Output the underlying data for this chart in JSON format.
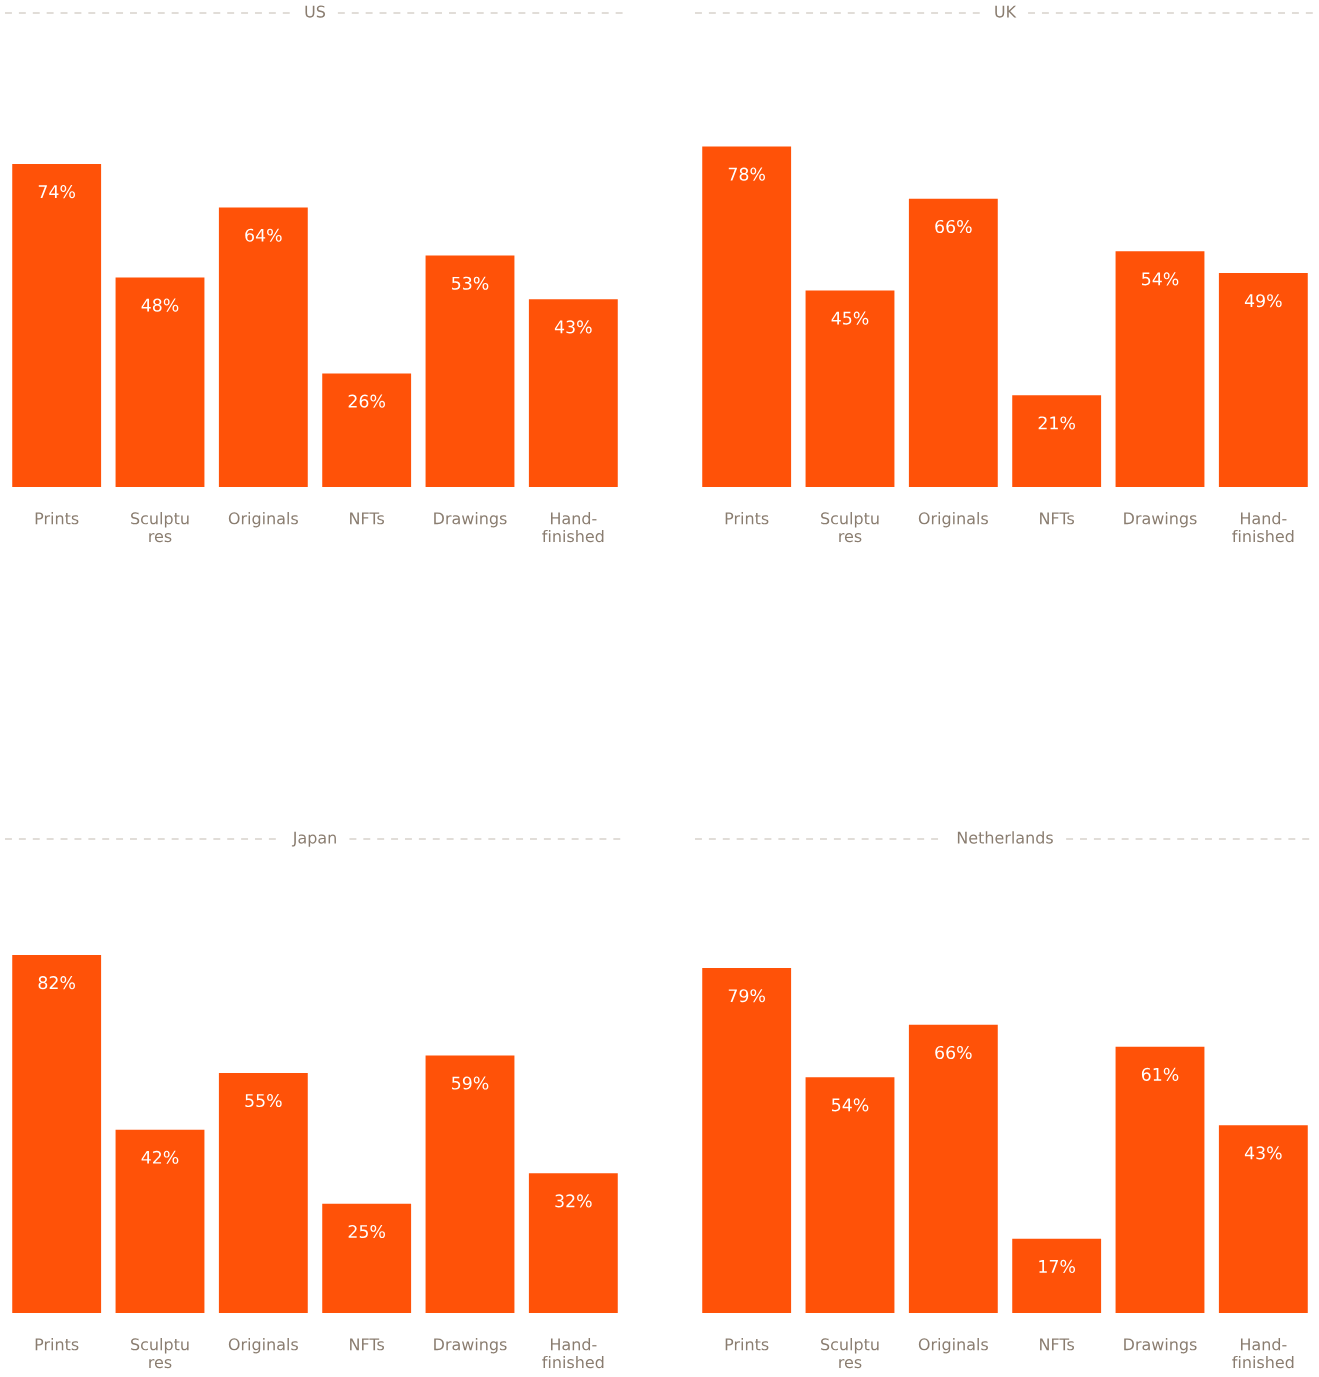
{
  "chart_data": [
    {
      "type": "bar",
      "title": "US",
      "categories": [
        "Prints",
        "Sculptu\nres",
        "Originals",
        "NFTs",
        "Drawings",
        "Hand-\nfinished"
      ],
      "values": [
        74,
        48,
        64,
        26,
        53,
        43
      ],
      "value_labels": [
        "74%",
        "48%",
        "64%",
        "26%",
        "53%",
        "43%"
      ],
      "color": "#ff5208",
      "tick_labels": "x"
    },
    {
      "type": "bar",
      "title": "UK",
      "categories": [
        "Prints",
        "Sculptu\nres",
        "Originals",
        "NFTs",
        "Drawings",
        "Hand-\nfinished"
      ],
      "values": [
        78,
        45,
        66,
        21,
        54,
        49
      ],
      "value_labels": [
        "78%",
        "45%",
        "66%",
        "21%",
        "54%",
        "49%"
      ],
      "color": "#ff5208",
      "tick_labels": "x"
    },
    {
      "type": "bar",
      "title": "Japan",
      "categories": [
        "Prints",
        "Sculptu\nres",
        "Originals",
        "NFTs",
        "Drawings",
        "Hand-\nfinished"
      ],
      "values": [
        82,
        42,
        55,
        25,
        59,
        32
      ],
      "value_labels": [
        "82%",
        "42%",
        "55%",
        "25%",
        "59%",
        "32%"
      ],
      "color": "#ff5208",
      "tick_labels": "x"
    },
    {
      "type": "bar",
      "title": "Netherlands",
      "categories": [
        "Prints",
        "Sculptu\nres",
        "Originals",
        "NFTs",
        "Drawings",
        "Hand-\nfinished"
      ],
      "values": [
        79,
        54,
        66,
        17,
        61,
        43
      ],
      "value_labels": [
        "79%",
        "54%",
        "66%",
        "17%",
        "61%",
        "43%"
      ],
      "color": "#ff5208",
      "tick_labels": "x"
    }
  ]
}
